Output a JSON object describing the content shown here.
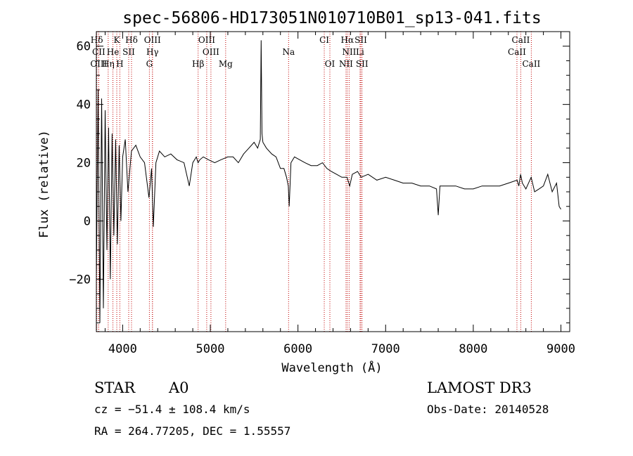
{
  "chart_data": {
    "type": "line",
    "title": "spec-56806-HD173051N010710B01_sp13-041.fits",
    "xlabel": "Wavelength (Å)",
    "ylabel": "Flux (relative)",
    "xlim": [
      3700,
      9100
    ],
    "ylim": [
      -38,
      65
    ],
    "xticks": [
      4000,
      5000,
      6000,
      7000,
      8000,
      9000
    ],
    "xtick_labels": [
      "4000",
      "5000",
      "6000",
      "7000",
      "8000",
      "9000"
    ],
    "yticks": [
      -20,
      0,
      20,
      40,
      60
    ],
    "ytick_labels": [
      "−20",
      "0",
      "20",
      "40",
      "60"
    ],
    "series": [
      {
        "name": "flux",
        "x": [
          3700,
          3720,
          3740,
          3760,
          3780,
          3800,
          3820,
          3840,
          3860,
          3880,
          3900,
          3920,
          3940,
          3960,
          3980,
          4000,
          4030,
          4060,
          4100,
          4150,
          4200,
          4250,
          4300,
          4330,
          4350,
          4380,
          4420,
          4480,
          4550,
          4620,
          4700,
          4760,
          4800,
          4840,
          4860,
          4880,
          4920,
          4980,
          5050,
          5120,
          5200,
          5260,
          5320,
          5380,
          5440,
          5500,
          5540,
          5570,
          5580,
          5590,
          5600,
          5640,
          5700,
          5750,
          5800,
          5840,
          5870,
          5890,
          5900,
          5920,
          5960,
          6020,
          6080,
          6150,
          6220,
          6280,
          6330,
          6380,
          6440,
          6500,
          6560,
          6590,
          6620,
          6680,
          6720,
          6800,
          6900,
          7000,
          7100,
          7200,
          7300,
          7400,
          7500,
          7580,
          7600,
          7620,
          7700,
          7800,
          7900,
          8000,
          8100,
          8200,
          8300,
          8400,
          8500,
          8520,
          8540,
          8560,
          8600,
          8660,
          8700,
          8750,
          8800,
          8850,
          8900,
          8950,
          8980,
          9000
        ],
        "y": [
          -20,
          45,
          -35,
          42,
          -30,
          38,
          -10,
          32,
          -20,
          30,
          -5,
          28,
          -8,
          26,
          0,
          22,
          28,
          10,
          24,
          26,
          22,
          20,
          8,
          18,
          -2,
          20,
          24,
          22,
          23,
          21,
          20,
          12,
          20,
          22,
          20,
          21,
          22,
          21,
          20,
          21,
          22,
          22,
          20,
          23,
          25,
          27,
          25,
          28,
          62,
          30,
          27,
          25,
          23,
          22,
          18,
          18,
          15,
          12,
          5,
          20,
          22,
          21,
          20,
          19,
          19,
          20,
          18,
          17,
          16,
          15,
          15,
          12,
          16,
          17,
          15,
          16,
          14,
          15,
          14,
          13,
          13,
          12,
          12,
          11,
          2,
          12,
          12,
          12,
          11,
          11,
          12,
          12,
          12,
          13,
          14,
          12,
          16,
          13,
          11,
          15,
          10,
          11,
          12,
          16,
          10,
          13,
          5,
          4
        ]
      }
    ],
    "spectral_lines": [
      {
        "label": "Hδ",
        "x": 3705,
        "row": 1
      },
      {
        "label": "K",
        "x": 3933,
        "row": 1
      },
      {
        "label": "Hδ",
        "x": 4101,
        "row": 1
      },
      {
        "label": "OIII",
        "x": 4340,
        "row": 1
      },
      {
        "label": "OIII",
        "x": 4959,
        "row": 1
      },
      {
        "label": "CI",
        "x": 6300,
        "row": 1
      },
      {
        "label": "Hα",
        "x": 6563,
        "row": 1
      },
      {
        "label": "SII",
        "x": 6717,
        "row": 1
      },
      {
        "label": "CaII",
        "x": 8542,
        "row": 1
      },
      {
        "label": "CII",
        "x": 3727,
        "row": 2
      },
      {
        "label": "He",
        "x": 3889,
        "row": 2
      },
      {
        "label": "SII",
        "x": 4069,
        "row": 2
      },
      {
        "label": "Hγ",
        "x": 4340,
        "row": 2
      },
      {
        "label": "OIII",
        "x": 5007,
        "row": 2
      },
      {
        "label": "Na",
        "x": 5893,
        "row": 2
      },
      {
        "label": "NII",
        "x": 6584,
        "row": 2
      },
      {
        "label": "Li",
        "x": 6708,
        "row": 2
      },
      {
        "label": "CaII",
        "x": 8498,
        "row": 2
      },
      {
        "label": "OIII",
        "x": 3727,
        "row": 3
      },
      {
        "label": "Hη",
        "x": 3835,
        "row": 3
      },
      {
        "label": "H",
        "x": 3968,
        "row": 3
      },
      {
        "label": "G",
        "x": 4305,
        "row": 3
      },
      {
        "label": "Hβ",
        "x": 4861,
        "row": 3
      },
      {
        "label": "Mg",
        "x": 5175,
        "row": 3
      },
      {
        "label": "OI",
        "x": 6364,
        "row": 3
      },
      {
        "label": "NII",
        "x": 6548,
        "row": 3
      },
      {
        "label": "SII",
        "x": 6731,
        "row": 3
      },
      {
        "label": "CaII",
        "x": 8662,
        "row": 3
      }
    ]
  },
  "info": {
    "class": "STAR",
    "subclass": "A0",
    "survey": "LAMOST DR3",
    "cz": "cz = −51.4 ± 108.4 km/s",
    "obs_date": "Obs-Date: 20140528",
    "coords": "RA = 264.77205, DEC =   1.55557"
  }
}
